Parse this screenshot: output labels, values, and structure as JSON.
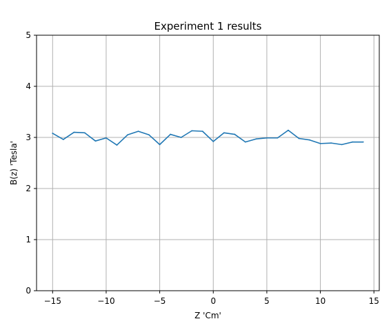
{
  "chart_data": {
    "type": "line",
    "title": "Experiment 1 results",
    "xlabel": "Z 'Cm'",
    "ylabel": "B(z) 'Tesla'",
    "xlim": [
      -16.5,
      15.5
    ],
    "ylim": [
      0,
      5
    ],
    "xticks": [
      -15,
      -10,
      -5,
      0,
      5,
      10,
      15
    ],
    "xtick_labels": [
      "−15",
      "−10",
      "−5",
      "0",
      "5",
      "10",
      "15"
    ],
    "yticks": [
      0,
      1,
      2,
      3,
      4,
      5
    ],
    "ytick_labels": [
      "0",
      "1",
      "2",
      "3",
      "4",
      "5"
    ],
    "grid": true,
    "series": [
      {
        "color": "#1f77b4",
        "x": [
          -15,
          -14,
          -13,
          -12,
          -11,
          -10,
          -9,
          -8,
          -7,
          -6,
          -5,
          -4,
          -3,
          -2,
          -1,
          0,
          1,
          2,
          3,
          4,
          5,
          6,
          7,
          8,
          9,
          10,
          11,
          12,
          13,
          14
        ],
        "y": [
          3.08,
          2.96,
          3.1,
          3.09,
          2.93,
          2.99,
          2.85,
          3.05,
          3.12,
          3.05,
          2.86,
          3.06,
          3.0,
          3.13,
          3.12,
          2.92,
          3.09,
          3.06,
          2.91,
          2.97,
          2.99,
          2.99,
          3.14,
          2.98,
          2.95,
          2.88,
          2.89,
          2.86,
          2.91,
          2.91
        ]
      }
    ]
  }
}
